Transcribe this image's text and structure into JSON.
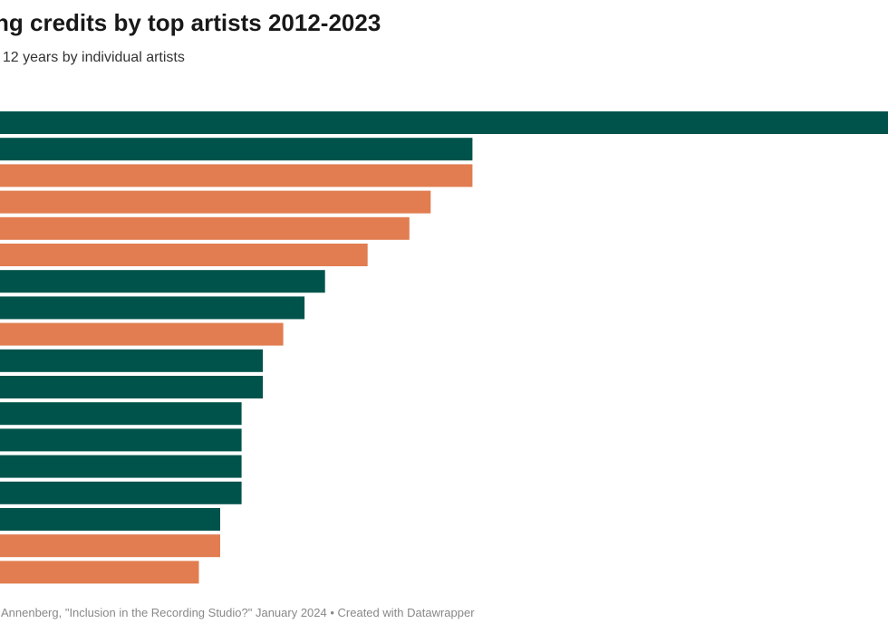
{
  "header": {
    "title": "ng credits by top artists 2012-2023",
    "subtitle": "t 12 years by individual artists"
  },
  "footer": {
    "source": "Annenberg, \"Inclusion in the Recording Studio?\" January 2024 • Created with Datawrapper"
  },
  "colors": {
    "green": "#00534b",
    "orange": "#e17d50"
  },
  "chart_data": {
    "type": "bar",
    "orientation": "horizontal",
    "title": "ng credits by top artists 2012-2023",
    "subtitle": "t 12 years by individual artists",
    "xlim": [
      0,
      100
    ],
    "grid": false,
    "legend": "none",
    "bars": [
      {
        "value": 100,
        "color": "green"
      },
      {
        "value": 53.2,
        "color": "green"
      },
      {
        "value": 53.2,
        "color": "orange"
      },
      {
        "value": 48.5,
        "color": "orange"
      },
      {
        "value": 46.1,
        "color": "orange"
      },
      {
        "value": 41.4,
        "color": "orange"
      },
      {
        "value": 36.6,
        "color": "green"
      },
      {
        "value": 34.3,
        "color": "green"
      },
      {
        "value": 31.9,
        "color": "orange"
      },
      {
        "value": 29.6,
        "color": "green"
      },
      {
        "value": 29.6,
        "color": "green"
      },
      {
        "value": 27.2,
        "color": "green"
      },
      {
        "value": 27.2,
        "color": "green"
      },
      {
        "value": 27.2,
        "color": "green"
      },
      {
        "value": 27.2,
        "color": "green"
      },
      {
        "value": 24.8,
        "color": "green"
      },
      {
        "value": 24.8,
        "color": "orange"
      },
      {
        "value": 22.4,
        "color": "orange"
      }
    ]
  }
}
